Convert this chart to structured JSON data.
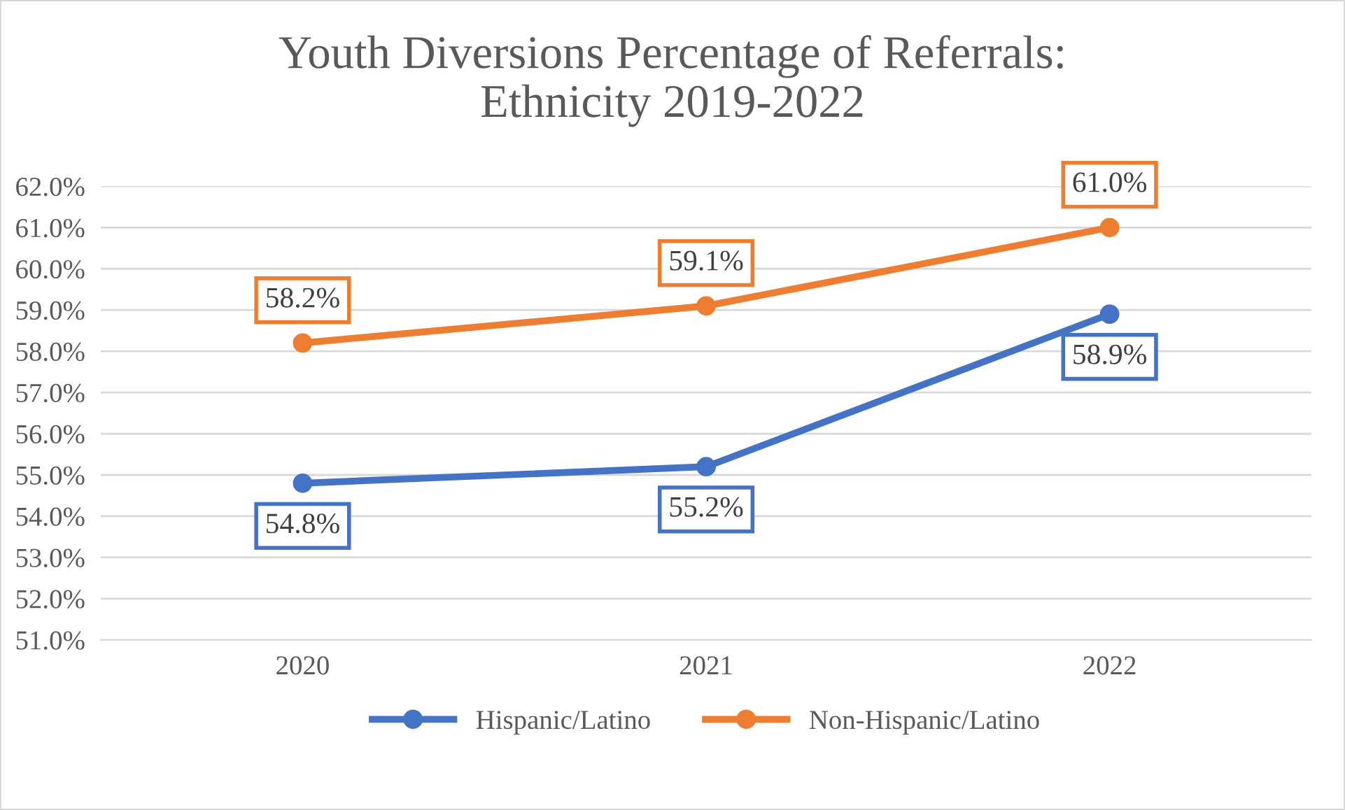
{
  "chart_data": {
    "type": "line",
    "title": "Youth Diversions Percentage of Referrals:\nEthnicity 2019-2022",
    "categories": [
      "2020",
      "2021",
      "2022"
    ],
    "series": [
      {
        "name": "Hispanic/Latino",
        "color": "#4472c4",
        "values": [
          54.8,
          55.2,
          58.9
        ],
        "value_labels": [
          "54.8%",
          "55.2%",
          "58.9%"
        ]
      },
      {
        "name": "Non-Hispanic/Latino",
        "color": "#ed7d31",
        "values": [
          58.2,
          59.1,
          61.0
        ],
        "value_labels": [
          "58.2%",
          "59.1%",
          "61.0%"
        ]
      }
    ],
    "ylim": [
      51,
      62
    ],
    "yticks": [
      {
        "value": 51,
        "label": "51.0%"
      },
      {
        "value": 52,
        "label": "52.0%"
      },
      {
        "value": 53,
        "label": "53.0%"
      },
      {
        "value": 54,
        "label": "54.0%"
      },
      {
        "value": 55,
        "label": "55.0%"
      },
      {
        "value": 56,
        "label": "56.0%"
      },
      {
        "value": 57,
        "label": "57.0%"
      },
      {
        "value": 58,
        "label": "58.0%"
      },
      {
        "value": 59,
        "label": "59.0%"
      },
      {
        "value": 60,
        "label": "60.0%"
      },
      {
        "value": 61,
        "label": "61.0%"
      },
      {
        "value": 62,
        "label": "62.0%"
      }
    ],
    "grid": "y",
    "legend": "bottom",
    "marker": "circle",
    "line_style": "solid"
  }
}
